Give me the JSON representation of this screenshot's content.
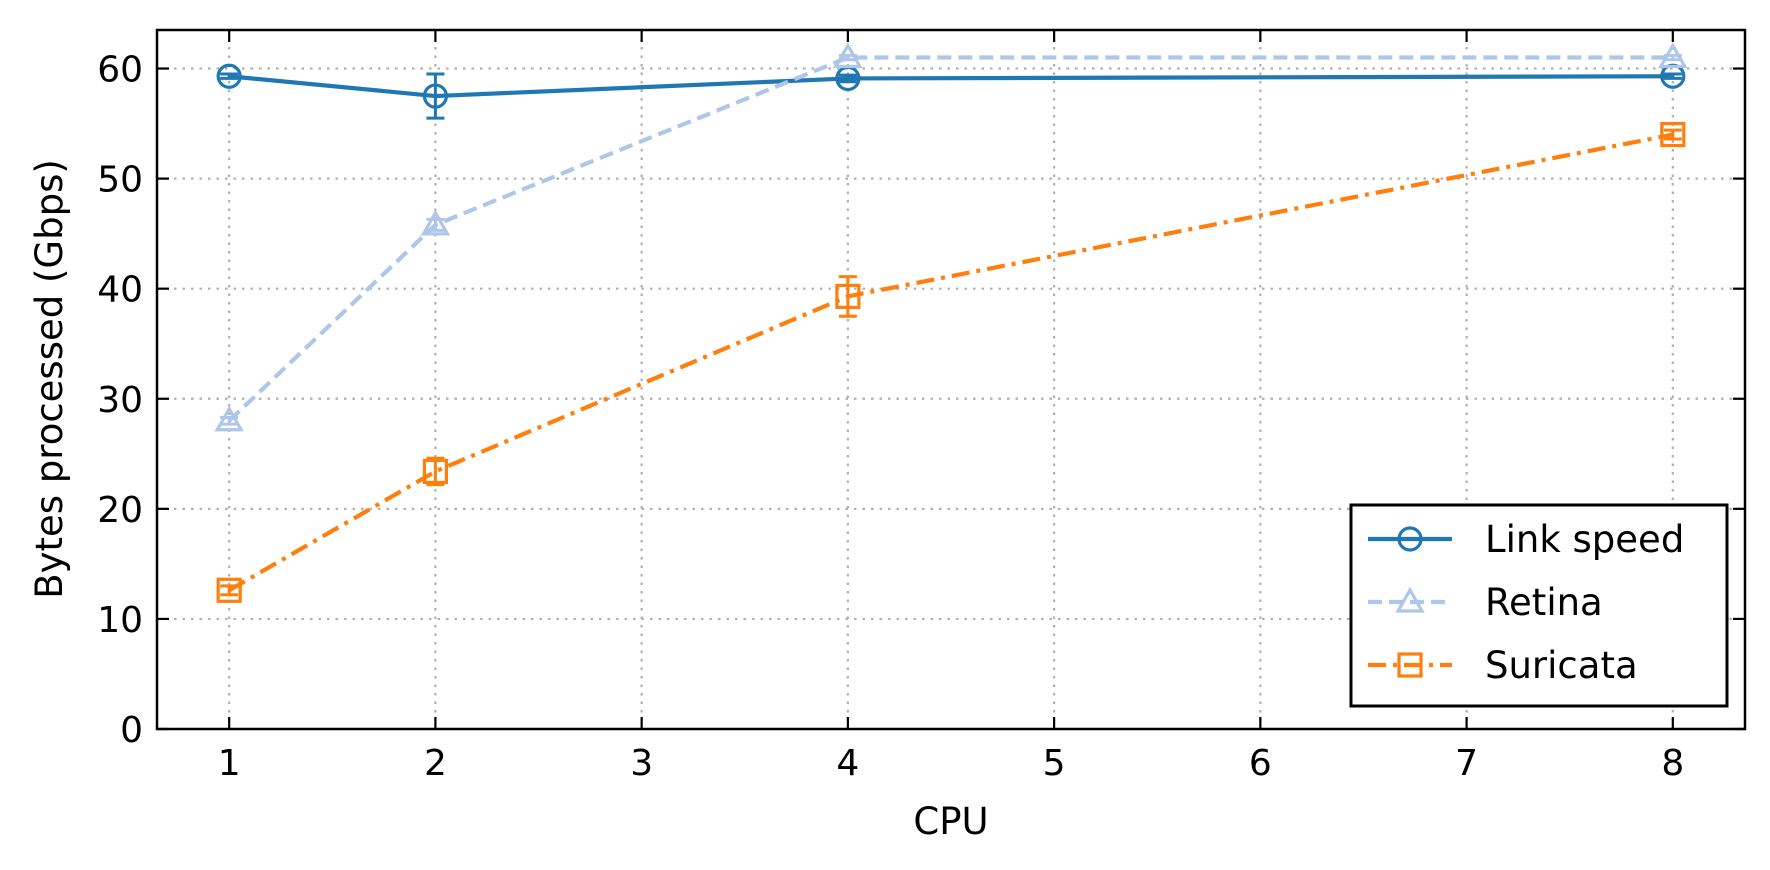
{
  "chart_data": {
    "type": "line",
    "xlabel": "CPU",
    "ylabel": "Bytes processed (Gbps)",
    "xlim": [
      0.65,
      8.35
    ],
    "ylim": [
      0,
      63.5
    ],
    "xticks": [
      1,
      2,
      3,
      4,
      5,
      6,
      7,
      8
    ],
    "yticks": [
      0,
      10,
      20,
      30,
      40,
      50,
      60
    ],
    "grid": true,
    "legend_position": "bottom-right",
    "series": [
      {
        "name": "Link speed",
        "color": "#1f77b4",
        "linestyle": "solid",
        "marker": "circle",
        "x": [
          1,
          2,
          4,
          8
        ],
        "values": [
          59.3,
          57.5,
          59.1,
          59.3
        ],
        "errors": [
          0.2,
          2.0,
          0.3,
          0.2
        ]
      },
      {
        "name": "Retina",
        "color": "#aec7e8",
        "linestyle": "dashed",
        "marker": "triangle",
        "x": [
          1,
          2,
          4,
          8
        ],
        "values": [
          28.0,
          45.8,
          61.0,
          61.0
        ],
        "errors": [
          0.3,
          0.5,
          0.2,
          0.2
        ]
      },
      {
        "name": "Suricata",
        "color": "#ff7f0e",
        "linestyle": "dashdot",
        "marker": "square",
        "x": [
          1,
          2,
          4,
          8
        ],
        "values": [
          12.6,
          23.4,
          39.3,
          54.0
        ],
        "errors": [
          0.4,
          1.2,
          1.8,
          0.4
        ]
      }
    ]
  }
}
